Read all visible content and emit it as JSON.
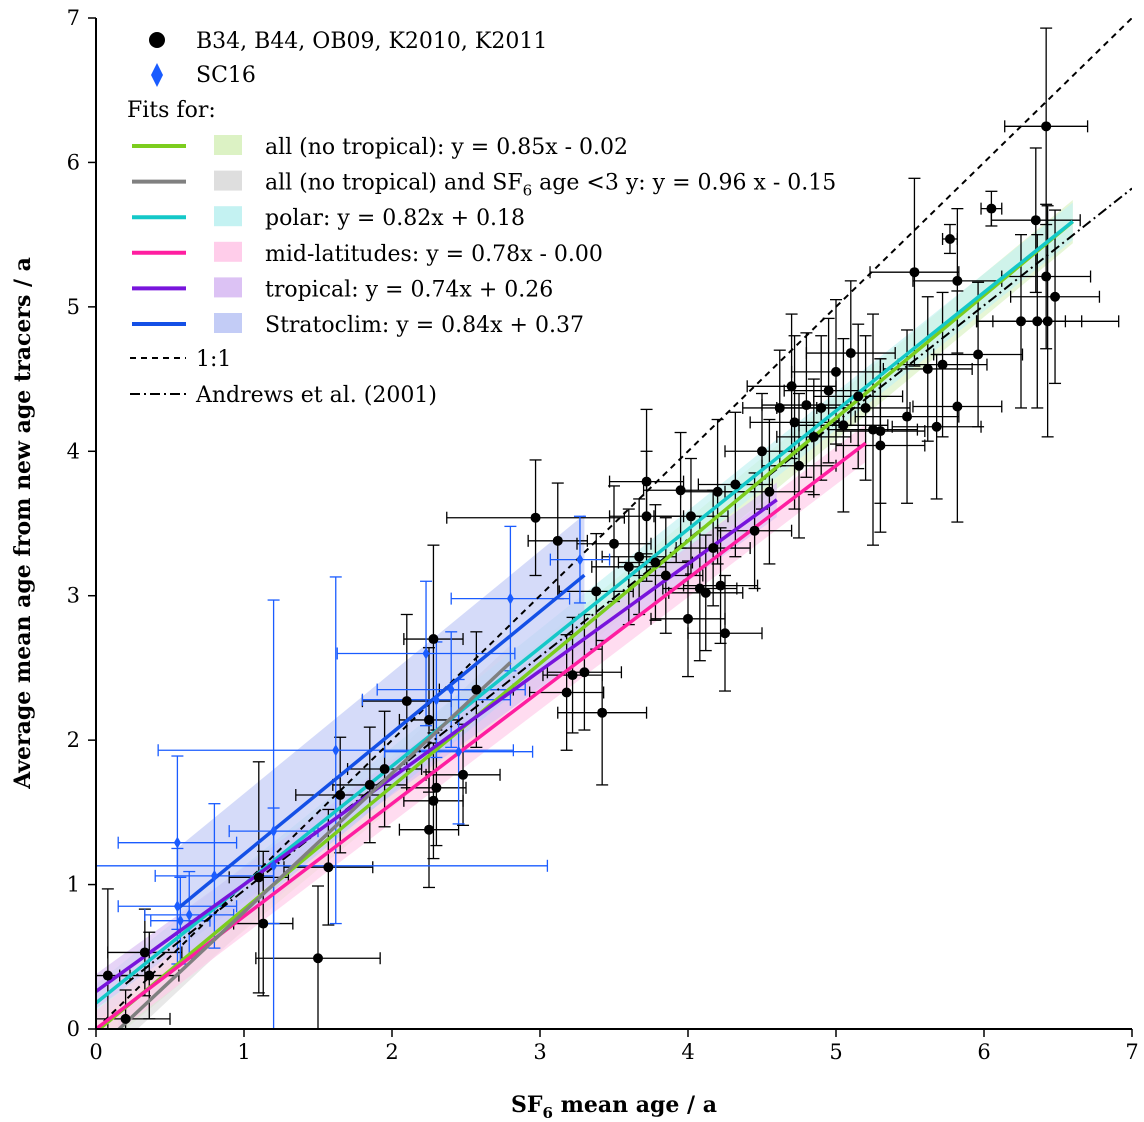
{
  "chart_data": {
    "type": "scatter",
    "title": "",
    "xlabel": "SF6 mean age / a",
    "xlabel_parts": {
      "pre": "SF",
      "sub": "6",
      "post": " mean age / a"
    },
    "ylabel": "Average mean age from new age tracers / a",
    "xlim": [
      0,
      7
    ],
    "ylim": [
      0,
      7
    ],
    "x_ticks": [
      "0",
      "1",
      "2",
      "3",
      "4",
      "5",
      "6",
      "7"
    ],
    "y_ticks": [
      "0",
      "1",
      "2",
      "3",
      "4",
      "5",
      "6",
      "7"
    ],
    "grid": false,
    "legend_position": "top-left",
    "legend": {
      "marker_entries": [
        {
          "label": "B34, B44, OB09, K2010, K2011",
          "marker": "circle",
          "color": "#000000"
        },
        {
          "label": "SC16",
          "marker": "diamond",
          "color": "#1a5cff"
        }
      ],
      "fits_header": "Fits for:",
      "fit_entries": [
        {
          "text": "all (no tropical): y = 0.85x - 0.02",
          "color": "#7ccd1e",
          "band": "#dcf2c4"
        },
        {
          "text_pre": "all (no tropical) and SF",
          "text_sub": "6",
          "text_post": " age <3 y: y = 0.96 x - 0.15",
          "color": "#808080",
          "band": "#dedede"
        },
        {
          "text": "polar: y = 0.82x + 0.18",
          "color": "#14c8c8",
          "band": "#c4f2f2"
        },
        {
          "text": "mid-latitudes: y = 0.78x - 0.00",
          "color": "#ff1ea0",
          "band": "#ffcdea"
        },
        {
          "text": "tropical: y = 0.74x + 0.26",
          "color": "#7814dc",
          "band": "#dcc2f4"
        },
        {
          "text": "Stratoclim: y = 0.84x + 0.37",
          "color": "#1450e6",
          "band": "#c3ccf6"
        }
      ],
      "ref_entries": [
        {
          "text": "1:1",
          "dash": "6,5"
        },
        {
          "text": "Andrews et al. (2001)",
          "dash": "10,4,2,4"
        }
      ]
    },
    "fits": [
      {
        "slope": 0.85,
        "intercept": -0.02,
        "x_range": [
          0.0,
          6.6
        ],
        "band_halfwidth": 0.15
      },
      {
        "slope": 0.96,
        "intercept": -0.15,
        "x_range": [
          0.15,
          2.8
        ],
        "band_halfwidth": 0.12
      },
      {
        "slope": 0.82,
        "intercept": 0.18,
        "x_range": [
          0.0,
          6.6
        ],
        "band_halfwidth": 0.13
      },
      {
        "slope": 0.78,
        "intercept": 0.0,
        "x_range": [
          0.0,
          5.2
        ],
        "band_halfwidth": 0.13
      },
      {
        "slope": 0.74,
        "intercept": 0.26,
        "x_range": [
          0.0,
          4.6
        ],
        "band_halfwidth": 0.12
      },
      {
        "slope": 0.84,
        "intercept": 0.37,
        "x_range": [
          0.55,
          3.3
        ],
        "band_halfwidth": 0.42
      }
    ],
    "reference_lines": [
      {
        "slope": 1.0,
        "intercept": 0.0,
        "x_range": [
          0.0,
          7.0
        ],
        "dash": "6,5"
      },
      {
        "slope": 0.81,
        "intercept": 0.15,
        "x_range": [
          0.2,
          7.0
        ],
        "dash": "10,4,2,4"
      }
    ],
    "series": [
      {
        "name": "B34, B44, OB09, K2010, K2011",
        "marker": "circle",
        "color": "#000000",
        "points": [
          {
            "x": 0.08,
            "y": 0.37,
            "xerr": 0.15,
            "yerr": 0.6
          },
          {
            "x": 0.2,
            "y": 0.07,
            "xerr": 0.3,
            "yerr": 0.2
          },
          {
            "x": 0.33,
            "y": 0.53,
            "xerr": 0.25,
            "yerr": 0.3
          },
          {
            "x": 0.36,
            "y": 0.37,
            "xerr": 0.2,
            "yerr": 0.3
          },
          {
            "x": 1.13,
            "y": 0.73,
            "xerr": 0.2,
            "yerr": 0.5
          },
          {
            "x": 1.1,
            "y": 1.05,
            "xerr": 0.2,
            "yerr": 0.8
          },
          {
            "x": 1.5,
            "y": 0.49,
            "xerr": 0.42,
            "yerr": 0.5
          },
          {
            "x": 1.57,
            "y": 1.12,
            "xerr": 0.3,
            "yerr": 0.4
          },
          {
            "x": 1.65,
            "y": 1.62,
            "xerr": 0.3,
            "yerr": 0.4
          },
          {
            "x": 1.85,
            "y": 1.69,
            "xerr": 0.25,
            "yerr": 0.4
          },
          {
            "x": 1.95,
            "y": 1.8,
            "xerr": 0.25,
            "yerr": 0.4
          },
          {
            "x": 2.1,
            "y": 2.27,
            "xerr": 0.3,
            "yerr": 0.6
          },
          {
            "x": 2.25,
            "y": 1.38,
            "xerr": 0.2,
            "yerr": 0.4
          },
          {
            "x": 2.25,
            "y": 2.14,
            "xerr": 0.2,
            "yerr": 0.5
          },
          {
            "x": 2.28,
            "y": 2.7,
            "xerr": 0.2,
            "yerr": 0.65
          },
          {
            "x": 2.28,
            "y": 1.58,
            "xerr": 0.2,
            "yerr": 0.4
          },
          {
            "x": 2.3,
            "y": 1.67,
            "xerr": 0.2,
            "yerr": 0.4
          },
          {
            "x": 2.48,
            "y": 1.76,
            "xerr": 0.25,
            "yerr": 0.35
          },
          {
            "x": 2.57,
            "y": 2.35,
            "xerr": 0.25,
            "yerr": 0.4
          },
          {
            "x": 2.97,
            "y": 3.54,
            "xerr": 0.6,
            "yerr": 0.4
          },
          {
            "x": 3.12,
            "y": 3.38,
            "xerr": 0.2,
            "yerr": 0.4
          },
          {
            "x": 3.18,
            "y": 2.33,
            "xerr": 0.25,
            "yerr": 0.4
          },
          {
            "x": 3.22,
            "y": 2.45,
            "xerr": 0.2,
            "yerr": 0.4
          },
          {
            "x": 3.3,
            "y": 2.47,
            "xerr": 0.25,
            "yerr": 0.4
          },
          {
            "x": 3.42,
            "y": 2.19,
            "xerr": 0.3,
            "yerr": 0.5
          },
          {
            "x": 3.38,
            "y": 3.03,
            "xerr": 0.25,
            "yerr": 0.4
          },
          {
            "x": 3.5,
            "y": 3.36,
            "xerr": 0.25,
            "yerr": 0.4
          },
          {
            "x": 3.6,
            "y": 3.2,
            "xerr": 0.25,
            "yerr": 0.4
          },
          {
            "x": 3.67,
            "y": 3.27,
            "xerr": 0.25,
            "yerr": 0.4
          },
          {
            "x": 3.72,
            "y": 3.79,
            "xerr": 0.25,
            "yerr": 0.5
          },
          {
            "x": 3.72,
            "y": 3.55,
            "xerr": 0.25,
            "yerr": 0.45
          },
          {
            "x": 3.78,
            "y": 3.23,
            "xerr": 0.25,
            "yerr": 0.4
          },
          {
            "x": 3.85,
            "y": 3.14,
            "xerr": 0.25,
            "yerr": 0.4
          },
          {
            "x": 3.95,
            "y": 3.73,
            "xerr": 0.25,
            "yerr": 0.4
          },
          {
            "x": 4.02,
            "y": 3.55,
            "xerr": 0.25,
            "yerr": 0.4
          },
          {
            "x": 4.0,
            "y": 2.84,
            "xerr": 0.25,
            "yerr": 0.4
          },
          {
            "x": 4.08,
            "y": 3.05,
            "xerr": 0.25,
            "yerr": 0.5
          },
          {
            "x": 4.12,
            "y": 3.02,
            "xerr": 0.25,
            "yerr": 0.4
          },
          {
            "x": 4.17,
            "y": 3.33,
            "xerr": 0.25,
            "yerr": 0.4
          },
          {
            "x": 4.2,
            "y": 3.72,
            "xerr": 0.25,
            "yerr": 0.5
          },
          {
            "x": 4.22,
            "y": 3.07,
            "xerr": 0.25,
            "yerr": 0.4
          },
          {
            "x": 4.25,
            "y": 2.74,
            "xerr": 0.25,
            "yerr": 0.4
          },
          {
            "x": 4.32,
            "y": 3.77,
            "xerr": 0.25,
            "yerr": 0.5
          },
          {
            "x": 4.45,
            "y": 3.45,
            "xerr": 0.25,
            "yerr": 0.4
          },
          {
            "x": 4.5,
            "y": 4.0,
            "xerr": 0.25,
            "yerr": 0.4
          },
          {
            "x": 4.55,
            "y": 3.72,
            "xerr": 0.3,
            "yerr": 0.5
          },
          {
            "x": 4.62,
            "y": 4.3,
            "xerr": 0.25,
            "yerr": 0.4
          },
          {
            "x": 4.7,
            "y": 4.45,
            "xerr": 0.3,
            "yerr": 0.5
          },
          {
            "x": 4.72,
            "y": 4.2,
            "xerr": 0.3,
            "yerr": 0.6
          },
          {
            "x": 4.75,
            "y": 3.9,
            "xerr": 0.25,
            "yerr": 0.5
          },
          {
            "x": 4.8,
            "y": 4.32,
            "xerr": 0.3,
            "yerr": 0.5
          },
          {
            "x": 4.85,
            "y": 4.1,
            "xerr": 0.25,
            "yerr": 0.4
          },
          {
            "x": 4.9,
            "y": 4.3,
            "xerr": 0.3,
            "yerr": 0.5
          },
          {
            "x": 4.95,
            "y": 4.42,
            "xerr": 0.3,
            "yerr": 0.5
          },
          {
            "x": 5.0,
            "y": 4.55,
            "xerr": 0.3,
            "yerr": 0.5
          },
          {
            "x": 5.05,
            "y": 4.18,
            "xerr": 0.3,
            "yerr": 0.6
          },
          {
            "x": 5.1,
            "y": 4.68,
            "xerr": 0.3,
            "yerr": 0.5
          },
          {
            "x": 5.15,
            "y": 4.38,
            "xerr": 0.3,
            "yerr": 0.5
          },
          {
            "x": 5.2,
            "y": 4.3,
            "xerr": 0.3,
            "yerr": 0.5
          },
          {
            "x": 5.25,
            "y": 4.15,
            "xerr": 0.3,
            "yerr": 0.8
          },
          {
            "x": 5.3,
            "y": 4.04,
            "xerr": 0.3,
            "yerr": 0.6
          },
          {
            "x": 5.3,
            "y": 4.14,
            "xerr": 0.3,
            "yerr": 0.5
          },
          {
            "x": 5.48,
            "y": 4.24,
            "xerr": 0.35,
            "yerr": 0.6
          },
          {
            "x": 5.53,
            "y": 5.24,
            "xerr": 0.3,
            "yerr": 0.65
          },
          {
            "x": 5.62,
            "y": 4.57,
            "xerr": 0.3,
            "yerr": 0.5
          },
          {
            "x": 5.68,
            "y": 4.17,
            "xerr": 0.3,
            "yerr": 0.5
          },
          {
            "x": 5.72,
            "y": 4.6,
            "xerr": 0.3,
            "yerr": 0.5
          },
          {
            "x": 5.77,
            "y": 5.47,
            "xerr": 0.05,
            "yerr": 0.1
          },
          {
            "x": 5.82,
            "y": 5.18,
            "xerr": 0.3,
            "yerr": 0.5
          },
          {
            "x": 5.82,
            "y": 4.31,
            "xerr": 0.3,
            "yerr": 0.8
          },
          {
            "x": 5.96,
            "y": 4.67,
            "xerr": 0.3,
            "yerr": 0.5
          },
          {
            "x": 6.05,
            "y": 5.68,
            "xerr": 0.07,
            "yerr": 0.12
          },
          {
            "x": 6.25,
            "y": 4.9,
            "xerr": 0.3,
            "yerr": 0.6
          },
          {
            "x": 6.35,
            "y": 5.6,
            "xerr": 0.3,
            "yerr": 0.5
          },
          {
            "x": 6.36,
            "y": 4.9,
            "xerr": 0.3,
            "yerr": 0.6
          },
          {
            "x": 6.42,
            "y": 6.25,
            "xerr": 0.28,
            "yerr": 0.68
          },
          {
            "x": 6.42,
            "y": 5.21,
            "xerr": 0.3,
            "yerr": 0.5
          },
          {
            "x": 6.43,
            "y": 4.9,
            "xerr": 0.48,
            "yerr": 0.8
          },
          {
            "x": 6.48,
            "y": 5.07,
            "xerr": 0.3,
            "yerr": 0.6
          }
        ]
      },
      {
        "name": "SC16",
        "marker": "diamond",
        "color": "#1a5cff",
        "points": [
          {
            "x": 0.55,
            "y": 1.29,
            "xerr": 0.4,
            "yerr": 0.6
          },
          {
            "x": 0.55,
            "y": 0.85,
            "xerr": 0.4,
            "yerr": 0.4
          },
          {
            "x": 0.57,
            "y": 0.75,
            "xerr": 0.2,
            "yerr": 0.3
          },
          {
            "x": 0.63,
            "y": 0.79,
            "xerr": 0.3,
            "yerr": 0.3
          },
          {
            "x": 0.8,
            "y": 1.06,
            "xerr": 0.4,
            "yerr": 0.5
          },
          {
            "x": 1.2,
            "y": 1.37,
            "xerr": 0.3,
            "yerr": 1.6
          },
          {
            "x": 1.2,
            "y": 1.13,
            "xerr": 1.85,
            "yerr": 0.4
          },
          {
            "x": 1.62,
            "y": 1.93,
            "xerr": 1.2,
            "yerr": 1.2
          },
          {
            "x": 2.23,
            "y": 2.6,
            "xerr": 0.6,
            "yerr": 0.5
          },
          {
            "x": 2.3,
            "y": 2.28,
            "xerr": 0.5,
            "yerr": 0.4
          },
          {
            "x": 2.4,
            "y": 2.35,
            "xerr": 0.5,
            "yerr": 0.4
          },
          {
            "x": 2.45,
            "y": 1.92,
            "xerr": 0.5,
            "yerr": 0.5
          },
          {
            "x": 2.8,
            "y": 2.98,
            "xerr": 0.4,
            "yerr": 0.5
          },
          {
            "x": 3.27,
            "y": 3.25,
            "xerr": 0.2,
            "yerr": 0.3
          }
        ]
      }
    ]
  }
}
